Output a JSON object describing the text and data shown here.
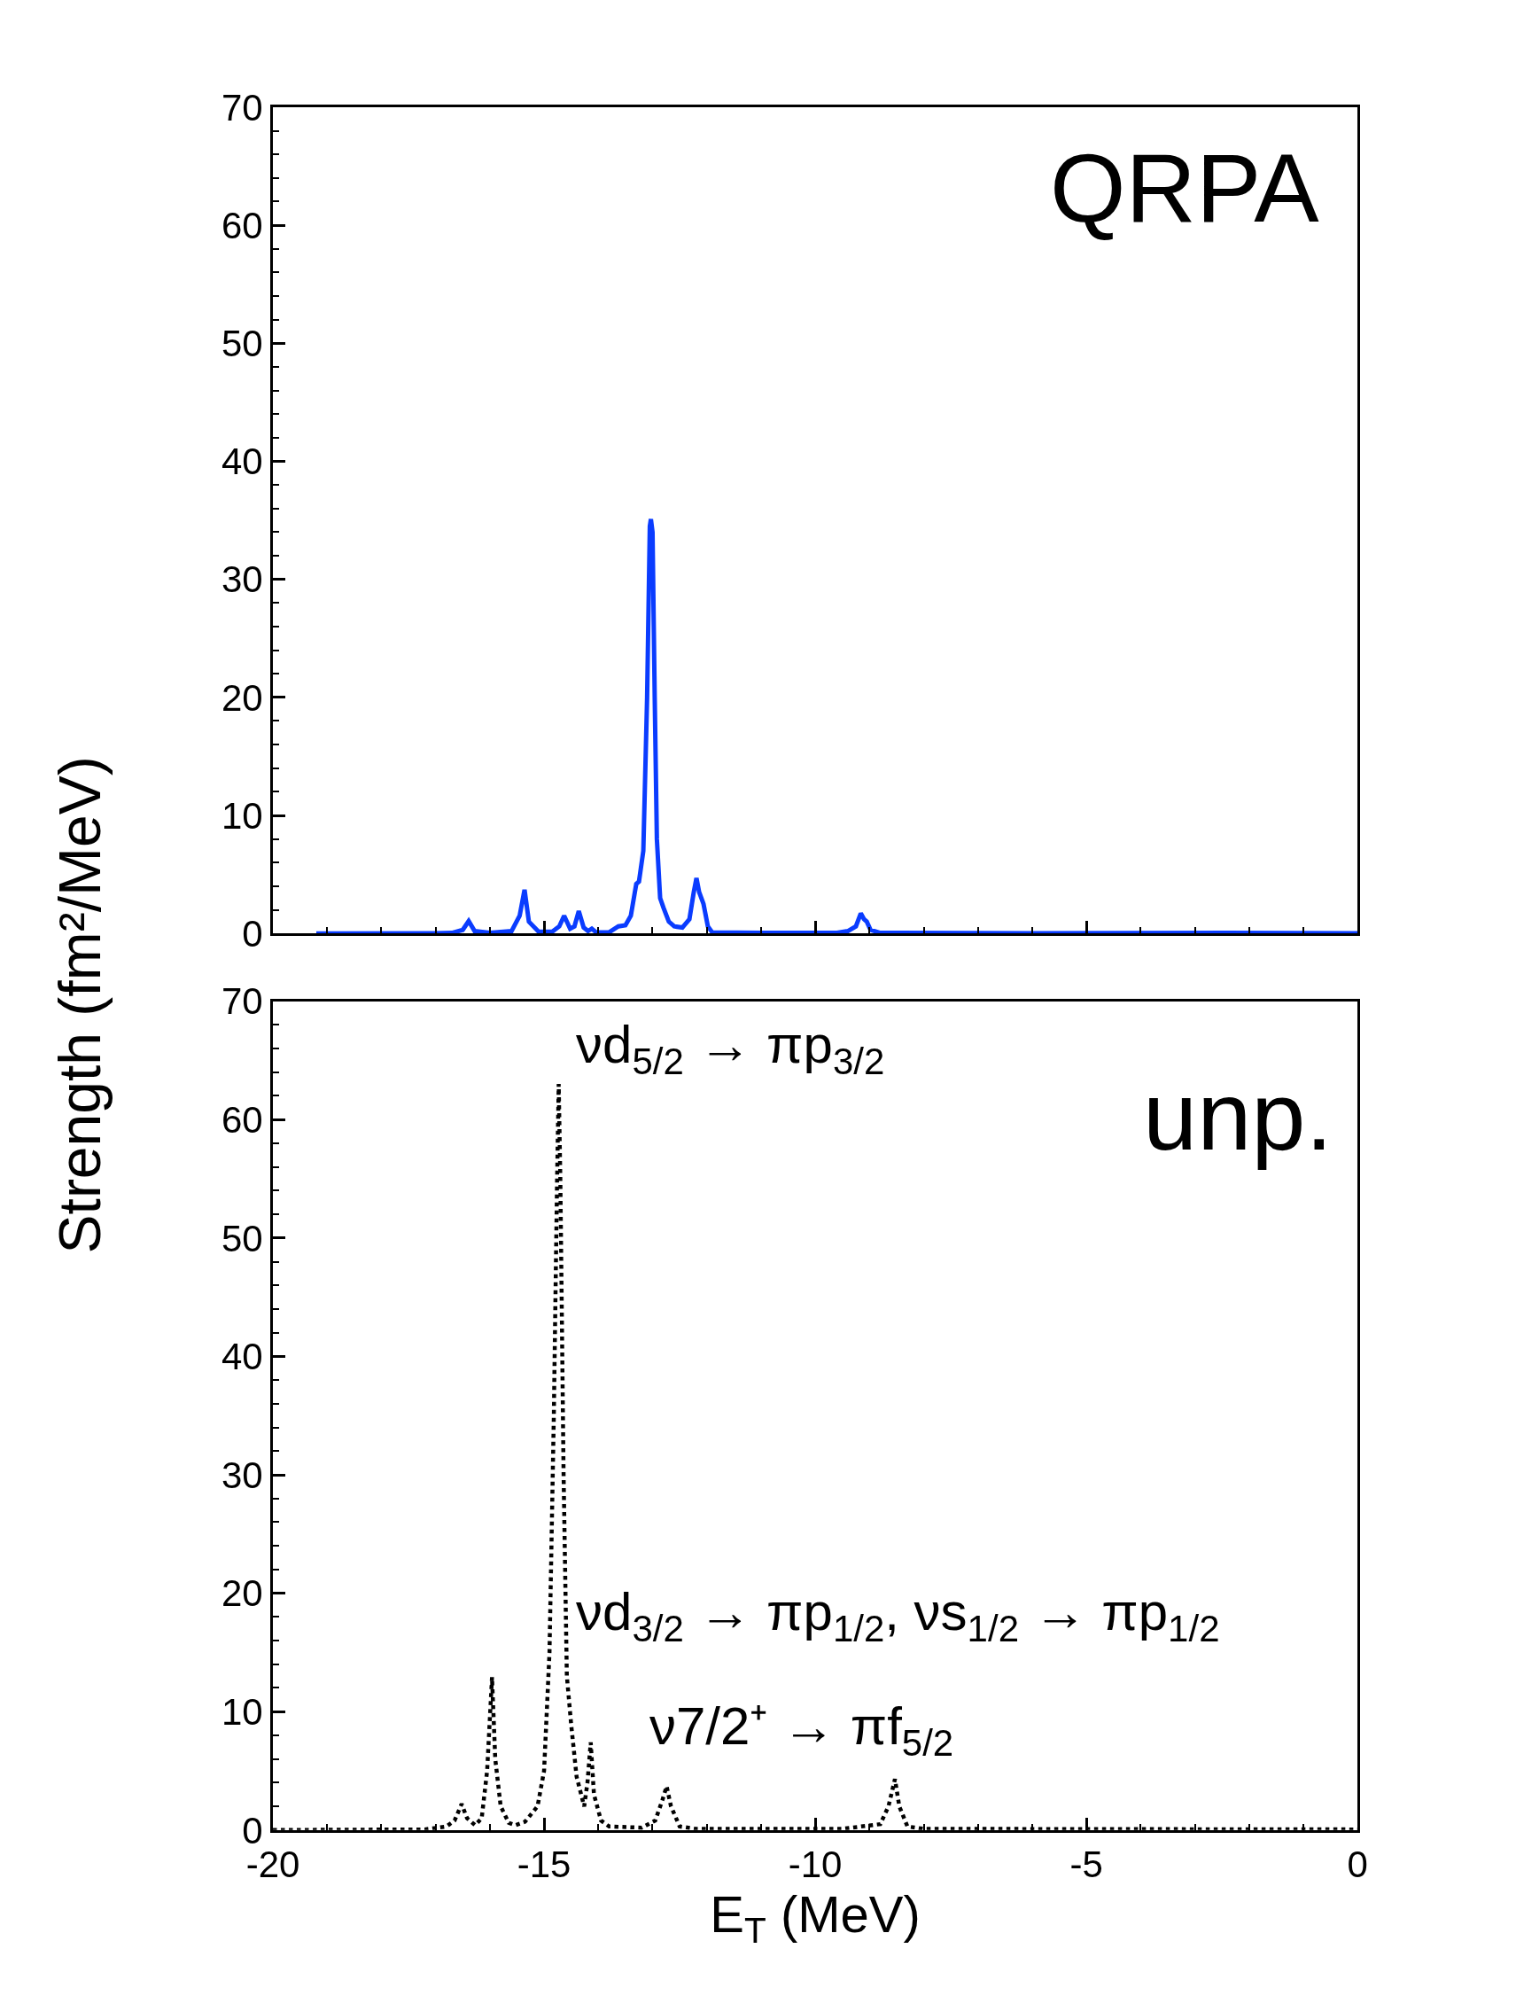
{
  "chart_data": [
    {
      "type": "line",
      "title": "QRPA",
      "ylabel": "Strength (fm²/MeV)",
      "xlim": [
        -20,
        0
      ],
      "ylim": [
        0,
        70
      ],
      "xticks": [
        -20,
        -15,
        -10,
        -5,
        0
      ],
      "yticks": [
        0,
        10,
        20,
        30,
        40,
        50,
        60,
        70
      ],
      "tick_labels": "y",
      "series": [
        {
          "color": "#0a3cff",
          "line_style": "solid",
          "x": [
            -19.2,
            -17,
            -16.7,
            -16.5,
            -16.39,
            -16.28,
            -16.0,
            -15.6,
            -15.45,
            -15.36,
            -15.28,
            -15.1,
            -14.85,
            -14.72,
            -14.63,
            -14.52,
            -14.44,
            -14.36,
            -14.27,
            -14.19,
            -14.12,
            -14.04,
            -13.8,
            -13.63,
            -13.5,
            -13.4,
            -13.3,
            -13.25,
            -13.17,
            -13.1,
            -13.05,
            -13.03,
            -13.0,
            -12.96,
            -12.92,
            -12.86,
            -12.8,
            -12.7,
            -12.6,
            -12.45,
            -12.32,
            -12.24,
            -12.19,
            -12.14,
            -12.06,
            -11.98,
            -11.9,
            -11,
            -9.6,
            -9.4,
            -9.25,
            -9.16,
            -9.1,
            -9.05,
            -8.98,
            -8.8,
            -6,
            -2.4,
            0
          ],
          "values": [
            0,
            0.02,
            0.05,
            0.3,
            1.05,
            0.2,
            0.05,
            0.2,
            1.5,
            3.7,
            1.0,
            0.15,
            0.15,
            0.6,
            1.5,
            0.4,
            0.6,
            1.9,
            0.5,
            0.2,
            0.4,
            0.1,
            0.1,
            0.6,
            0.7,
            1.5,
            4.2,
            4.4,
            7,
            20,
            34.5,
            35.1,
            34,
            20,
            8,
            3.0,
            2.2,
            1.0,
            0.6,
            0.5,
            1.2,
            3.5,
            4.7,
            3.5,
            2.5,
            0.6,
            0.1,
            0.05,
            0.05,
            0.2,
            0.6,
            1.7,
            1.2,
            1.0,
            0.3,
            0.05,
            0.02,
            0.05,
            0.02
          ]
        }
      ]
    },
    {
      "type": "line",
      "title": "unp.",
      "xlabel": "E$_{T}$ (MeV)",
      "xlim": [
        -20,
        0
      ],
      "ylim": [
        0,
        70
      ],
      "xticks": [
        -20,
        -15,
        -10,
        -5,
        0
      ],
      "yticks": [
        0,
        10,
        20,
        30,
        40,
        50,
        60,
        70
      ],
      "annotations": [
        "νd$_{5/2}$ → πp$_{3/2}$",
        "νd$_{3/2}$ → πp$_{1/2}$, νs$_{1/2}$ → πp$_{1/2}$",
        "ν7/2⁺ → πf$_{5/2}$"
      ],
      "series": [
        {
          "color": "#000000",
          "line_style": "dotted",
          "x": [
            -20,
            -17.2,
            -16.8,
            -16.65,
            -16.52,
            -16.42,
            -16.27,
            -16.15,
            -16.05,
            -15.96,
            -15.9,
            -15.8,
            -15.65,
            -15.53,
            -15.35,
            -15.12,
            -15.0,
            -14.9,
            -14.82,
            -14.76,
            -14.73,
            -14.7,
            -14.64,
            -14.58,
            -14.5,
            -14.4,
            -14.26,
            -14.2,
            -14.14,
            -14.08,
            -13.95,
            -13.8,
            -13.2,
            -12.95,
            -12.82,
            -12.74,
            -12.66,
            -12.5,
            -12.2,
            -9.5,
            -8.8,
            -8.65,
            -8.53,
            -8.45,
            -8.3,
            -8.0,
            0
          ],
          "values": [
            0,
            0.05,
            0.3,
            0.8,
            2.2,
            1.0,
            0.4,
            1.0,
            5,
            12.9,
            6,
            2.0,
            0.6,
            0.4,
            0.7,
            2.0,
            5,
            15,
            35,
            55,
            63.0,
            55,
            30,
            13,
            8.9,
            4.5,
            2.0,
            4,
            7.4,
            3,
            0.8,
            0.3,
            0.2,
            0.8,
            2.5,
            3.7,
            2,
            0.3,
            0.1,
            0.1,
            0.5,
            2,
            4.3,
            2,
            0.3,
            0.1,
            0.05
          ]
        }
      ]
    }
  ]
}
